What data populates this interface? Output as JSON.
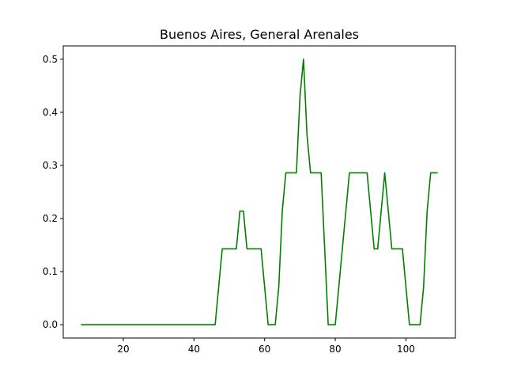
{
  "chart_data": {
    "type": "line",
    "title": "Buenos Aires, General Arenales",
    "xlabel": "",
    "ylabel": "",
    "xlim": [
      3,
      114
    ],
    "ylim": [
      -0.025,
      0.525
    ],
    "x_ticks": [
      20,
      40,
      60,
      80,
      100
    ],
    "y_ticks": [
      0.0,
      0.1,
      0.2,
      0.3,
      0.4,
      0.5
    ],
    "x_tick_labels": [
      "20",
      "40",
      "60",
      "80",
      "100"
    ],
    "y_tick_labels": [
      "0.0",
      "0.1",
      "0.2",
      "0.3",
      "0.4",
      "0.5"
    ],
    "grid": false,
    "series": [
      {
        "color": "#008000",
        "x": [
          8,
          46,
          48,
          52,
          53,
          54,
          55,
          59,
          61,
          63,
          64,
          65,
          66,
          68,
          69,
          70,
          71,
          72,
          73,
          75,
          76,
          77,
          78,
          80,
          82,
          84,
          85,
          89,
          91,
          92,
          94,
          96,
          98,
          99,
          101,
          103,
          104,
          105,
          106,
          107,
          109
        ],
        "y": [
          0.0,
          0.0,
          0.143,
          0.143,
          0.214,
          0.214,
          0.143,
          0.143,
          0.0,
          0.0,
          0.071,
          0.214,
          0.286,
          0.286,
          0.286,
          0.429,
          0.5,
          0.357,
          0.286,
          0.286,
          0.286,
          0.143,
          0.0,
          0.0,
          0.143,
          0.286,
          0.286,
          0.286,
          0.143,
          0.143,
          0.286,
          0.143,
          0.143,
          0.143,
          0.0,
          0.0,
          0.0,
          0.071,
          0.214,
          0.286,
          0.286
        ]
      }
    ]
  }
}
